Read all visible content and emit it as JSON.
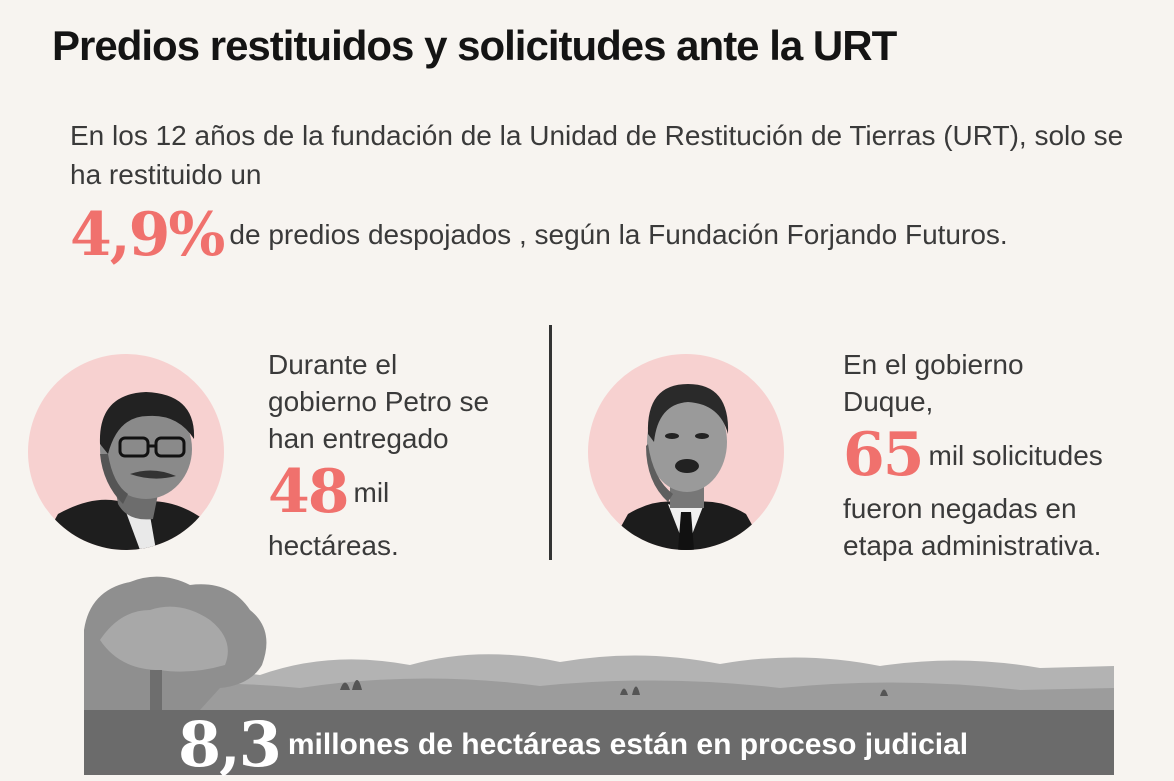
{
  "title": "Predios restituidos y solicitudes ante la URT",
  "intro": {
    "text": "En los 12 años de la fundación de la Unidad de Restitución de Tierras (URT), solo se ha restituido un",
    "stat_value": "4,9%",
    "stat_rest": "de predios despojados , según la Fundación Forjando Futuros."
  },
  "petro": {
    "line1": "Durante el",
    "line2": "gobierno Petro se",
    "line3": "han entregado",
    "value": "48",
    "unit": "mil",
    "line5": "hectáreas."
  },
  "duque": {
    "line1": "En el gobierno",
    "line2": "Duque,",
    "value": "65",
    "unit": "mil solicitudes",
    "line4": "fueron negadas en",
    "line5": "etapa administrativa."
  },
  "band": {
    "value": "8,3",
    "rest": "millones de hectáreas están en proceso judicial"
  },
  "colors": {
    "accent": "#f0716d",
    "portrait_bg": "#f7d1d0",
    "band": "#6b6b6b",
    "background": "#f7f4f0"
  },
  "icons": {
    "portrait_petro": "man-with-glasses-portrait",
    "portrait_duque": "man-in-suit-portrait"
  }
}
